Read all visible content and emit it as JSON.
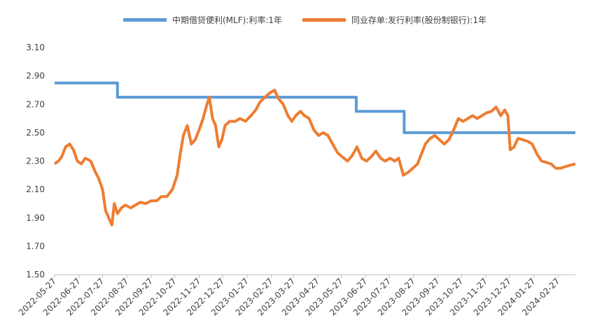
{
  "chart_data": {
    "type": "line",
    "title": "",
    "xlabel": "",
    "ylabel": "",
    "ylim": [
      1.5,
      3.1
    ],
    "yticks": [
      "1.50",
      "1.70",
      "1.90",
      "2.10",
      "2.30",
      "2.50",
      "2.70",
      "2.90",
      "3.10"
    ],
    "xticks": [
      "2022-05-27",
      "2022-06-27",
      "2022-07-27",
      "2022-08-27",
      "2022-09-27",
      "2022-10-27",
      "2022-11-27",
      "2022-12-27",
      "2023-01-27",
      "2023-02-27",
      "2023-03-27",
      "2023-04-27",
      "2023-05-27",
      "2023-06-27",
      "2023-07-27",
      "2023-08-27",
      "2023-09-27",
      "2023-10-27",
      "2023-11-27",
      "2023-12-27",
      "2024-01-27",
      "2024-02-27"
    ],
    "xrange": [
      "2022-05-27",
      "2024-03-20"
    ],
    "grid": false,
    "legend_position": "top",
    "series": [
      {
        "name": "中期借贷便利(MLF):利率:1年",
        "color": "#5B9BD5",
        "step": true,
        "points": [
          [
            "2022-05-27",
            2.85
          ],
          [
            "2022-08-15",
            2.85
          ],
          [
            "2022-08-15",
            2.75
          ],
          [
            "2023-06-15",
            2.75
          ],
          [
            "2023-06-15",
            2.65
          ],
          [
            "2023-08-15",
            2.65
          ],
          [
            "2023-08-15",
            2.5
          ],
          [
            "2024-03-20",
            2.5
          ]
        ]
      },
      {
        "name": "同业存单:发行利率(股份制银行):1年",
        "color": "#ED7D31",
        "step": false,
        "points": [
          [
            "2022-05-27",
            2.28
          ],
          [
            "2022-06-01",
            2.3
          ],
          [
            "2022-06-05",
            2.33
          ],
          [
            "2022-06-10",
            2.4
          ],
          [
            "2022-06-15",
            2.42
          ],
          [
            "2022-06-20",
            2.38
          ],
          [
            "2022-06-25",
            2.3
          ],
          [
            "2022-06-30",
            2.28
          ],
          [
            "2022-07-05",
            2.32
          ],
          [
            "2022-07-12",
            2.3
          ],
          [
            "2022-07-18",
            2.22
          ],
          [
            "2022-07-22",
            2.18
          ],
          [
            "2022-07-27",
            2.1
          ],
          [
            "2022-07-31",
            1.95
          ],
          [
            "2022-08-04",
            1.9
          ],
          [
            "2022-08-08",
            1.85
          ],
          [
            "2022-08-11",
            2.0
          ],
          [
            "2022-08-15",
            1.93
          ],
          [
            "2022-08-20",
            1.97
          ],
          [
            "2022-08-25",
            1.99
          ],
          [
            "2022-09-01",
            1.97
          ],
          [
            "2022-09-07",
            1.99
          ],
          [
            "2022-09-13",
            2.01
          ],
          [
            "2022-09-20",
            2.0
          ],
          [
            "2022-09-27",
            2.02
          ],
          [
            "2022-10-04",
            2.02
          ],
          [
            "2022-10-10",
            2.05
          ],
          [
            "2022-10-17",
            2.05
          ],
          [
            "2022-10-24",
            2.1
          ],
          [
            "2022-10-30",
            2.2
          ],
          [
            "2022-11-03",
            2.35
          ],
          [
            "2022-11-07",
            2.48
          ],
          [
            "2022-11-12",
            2.55
          ],
          [
            "2022-11-17",
            2.42
          ],
          [
            "2022-11-22",
            2.45
          ],
          [
            "2022-11-27",
            2.52
          ],
          [
            "2022-12-02",
            2.6
          ],
          [
            "2022-12-07",
            2.7
          ],
          [
            "2022-12-10",
            2.75
          ],
          [
            "2022-12-14",
            2.6
          ],
          [
            "2022-12-18",
            2.55
          ],
          [
            "2022-12-22",
            2.4
          ],
          [
            "2022-12-26",
            2.45
          ],
          [
            "2022-12-30",
            2.55
          ],
          [
            "2023-01-05",
            2.58
          ],
          [
            "2023-01-12",
            2.58
          ],
          [
            "2023-01-18",
            2.6
          ],
          [
            "2023-01-25",
            2.58
          ],
          [
            "2023-02-01",
            2.62
          ],
          [
            "2023-02-07",
            2.66
          ],
          [
            "2023-02-13",
            2.72
          ],
          [
            "2023-02-19",
            2.75
          ],
          [
            "2023-02-25",
            2.78
          ],
          [
            "2023-03-03",
            2.8
          ],
          [
            "2023-03-08",
            2.74
          ],
          [
            "2023-03-14",
            2.7
          ],
          [
            "2023-03-20",
            2.62
          ],
          [
            "2023-03-25",
            2.58
          ],
          [
            "2023-03-30",
            2.62
          ],
          [
            "2023-04-05",
            2.65
          ],
          [
            "2023-04-10",
            2.62
          ],
          [
            "2023-04-16",
            2.6
          ],
          [
            "2023-04-22",
            2.52
          ],
          [
            "2023-04-28",
            2.48
          ],
          [
            "2023-05-04",
            2.5
          ],
          [
            "2023-05-10",
            2.48
          ],
          [
            "2023-05-16",
            2.42
          ],
          [
            "2023-05-22",
            2.36
          ],
          [
            "2023-05-28",
            2.33
          ],
          [
            "2023-06-04",
            2.3
          ],
          [
            "2023-06-10",
            2.34
          ],
          [
            "2023-06-16",
            2.4
          ],
          [
            "2023-06-22",
            2.32
          ],
          [
            "2023-06-28",
            2.3
          ],
          [
            "2023-07-04",
            2.33
          ],
          [
            "2023-07-10",
            2.37
          ],
          [
            "2023-07-16",
            2.32
          ],
          [
            "2023-07-22",
            2.3
          ],
          [
            "2023-07-28",
            2.32
          ],
          [
            "2023-08-03",
            2.3
          ],
          [
            "2023-08-08",
            2.32
          ],
          [
            "2023-08-14",
            2.2
          ],
          [
            "2023-08-20",
            2.22
          ],
          [
            "2023-08-26",
            2.25
          ],
          [
            "2023-09-01",
            2.28
          ],
          [
            "2023-09-06",
            2.35
          ],
          [
            "2023-09-11",
            2.42
          ],
          [
            "2023-09-17",
            2.46
          ],
          [
            "2023-09-23",
            2.48
          ],
          [
            "2023-09-29",
            2.45
          ],
          [
            "2023-10-05",
            2.42
          ],
          [
            "2023-10-11",
            2.45
          ],
          [
            "2023-10-17",
            2.52
          ],
          [
            "2023-10-23",
            2.6
          ],
          [
            "2023-10-29",
            2.58
          ],
          [
            "2023-11-04",
            2.6
          ],
          [
            "2023-11-10",
            2.62
          ],
          [
            "2023-11-16",
            2.6
          ],
          [
            "2023-11-22",
            2.62
          ],
          [
            "2023-11-28",
            2.64
          ],
          [
            "2023-12-04",
            2.65
          ],
          [
            "2023-12-10",
            2.68
          ],
          [
            "2023-12-16",
            2.62
          ],
          [
            "2023-12-21",
            2.66
          ],
          [
            "2023-12-25",
            2.62
          ],
          [
            "2023-12-28",
            2.38
          ],
          [
            "2024-01-02",
            2.4
          ],
          [
            "2024-01-07",
            2.46
          ],
          [
            "2024-01-13",
            2.45
          ],
          [
            "2024-01-19",
            2.44
          ],
          [
            "2024-01-25",
            2.42
          ],
          [
            "2024-01-31",
            2.35
          ],
          [
            "2024-02-06",
            2.3
          ],
          [
            "2024-02-12",
            2.29
          ],
          [
            "2024-02-18",
            2.28
          ],
          [
            "2024-02-24",
            2.25
          ],
          [
            "2024-03-01",
            2.25
          ],
          [
            "2024-03-07",
            2.26
          ],
          [
            "2024-03-13",
            2.27
          ],
          [
            "2024-03-20",
            2.28
          ]
        ]
      }
    ]
  }
}
